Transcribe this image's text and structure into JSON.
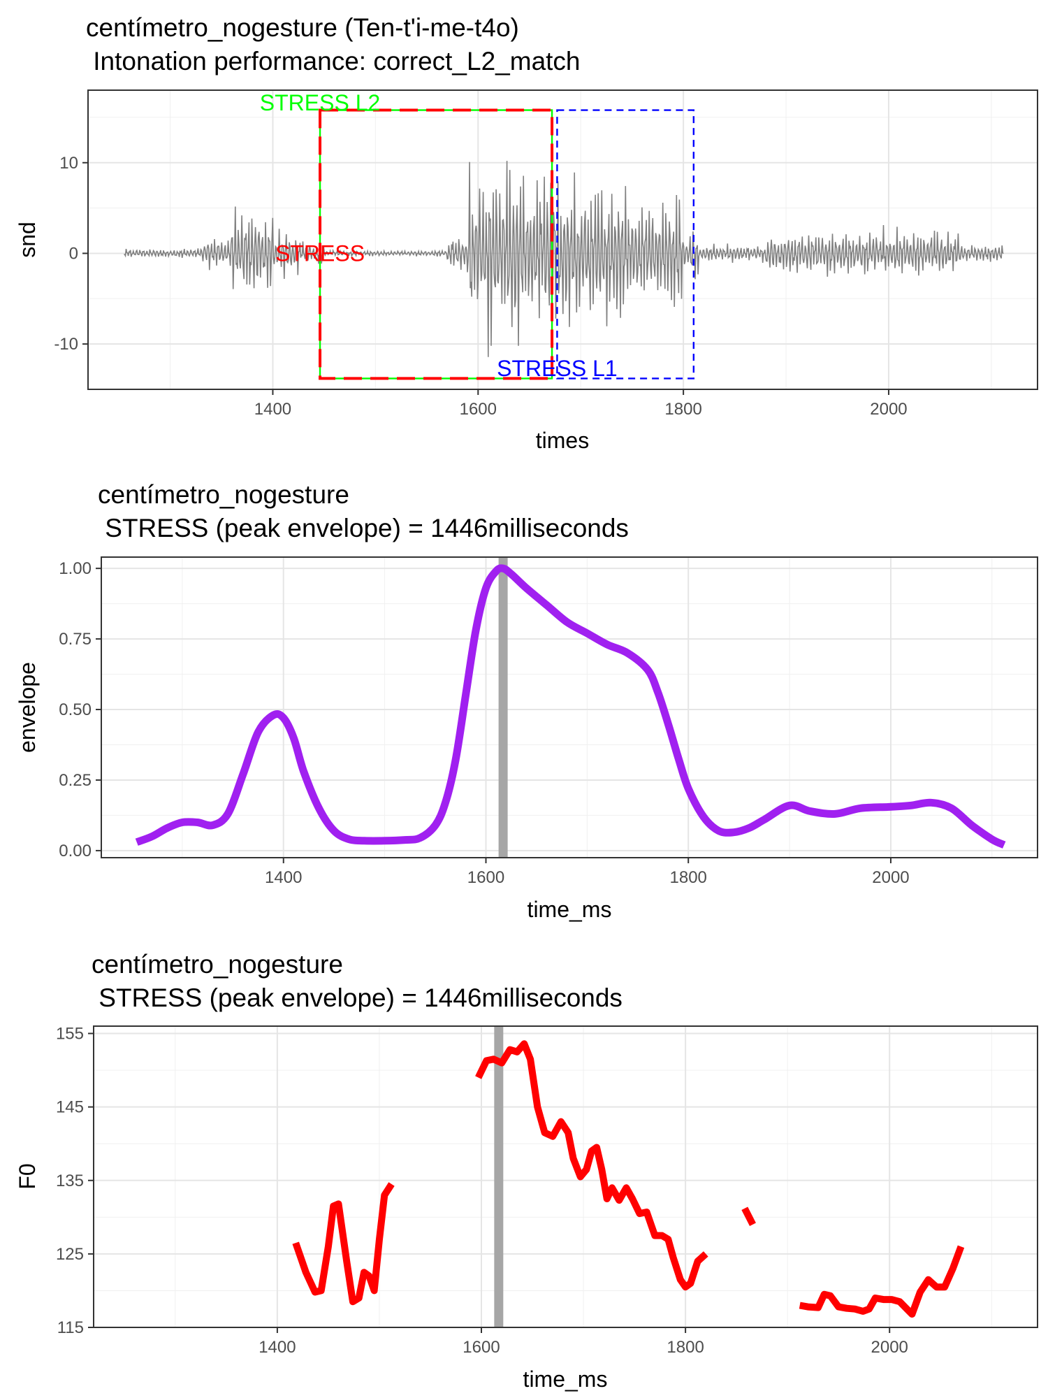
{
  "chart_data": [
    {
      "type": "line",
      "title": "centímetro_nogesture  (Ten-t'i-me-t4o)",
      "subtitle": " Intonation performance: correct_L2_match",
      "xlabel": "times",
      "ylabel": "snd",
      "xlim": [
        1220,
        2145
      ],
      "ylim": [
        -15,
        18
      ],
      "xticks": [
        1400,
        1600,
        1800,
        2000
      ],
      "yticks": [
        -10,
        0,
        10
      ],
      "ytick_labels": [
        "-10",
        "0",
        "10"
      ],
      "grid": true,
      "line_color": "#808080",
      "waveform_segments": [
        {
          "start": 1255,
          "end": 1330,
          "amp": 0.6
        },
        {
          "start": 1330,
          "end": 1360,
          "amp": 2.2
        },
        {
          "start": 1360,
          "end": 1378,
          "amp": 6.5
        },
        {
          "start": 1378,
          "end": 1400,
          "amp": 6.0
        },
        {
          "start": 1400,
          "end": 1425,
          "amp": 3.0
        },
        {
          "start": 1425,
          "end": 1450,
          "amp": 1.5
        },
        {
          "start": 1450,
          "end": 1570,
          "amp": 0.4
        },
        {
          "start": 1570,
          "end": 1590,
          "amp": 2.5
        },
        {
          "start": 1590,
          "end": 1640,
          "amp": 12.5
        },
        {
          "start": 1640,
          "end": 1672,
          "amp": 10.5
        },
        {
          "start": 1672,
          "end": 1740,
          "amp": 9.5
        },
        {
          "start": 1740,
          "end": 1800,
          "amp": 8.0
        },
        {
          "start": 1800,
          "end": 1815,
          "amp": 3.5
        },
        {
          "start": 1815,
          "end": 1880,
          "amp": 1.2
        },
        {
          "start": 1880,
          "end": 1900,
          "amp": 2.5
        },
        {
          "start": 1900,
          "end": 2070,
          "amp": 3.2
        },
        {
          "start": 2070,
          "end": 2112,
          "amp": 1.2
        }
      ],
      "boxes": [
        {
          "label": "STRESS",
          "xmin": 1446,
          "xmax": 1672,
          "ymin": -13.8,
          "ymax": 15.8,
          "color": "#ff0000",
          "dash": "long",
          "label_x": 1446,
          "label_y": 0
        },
        {
          "label": "STRESS L2",
          "xmin": 1446,
          "xmax": 1672,
          "ymin": -13.8,
          "ymax": 15.8,
          "color": "#00ff00",
          "dash": "solid",
          "label_x": 1446,
          "label_y": 16.6
        },
        {
          "label": "STRESS L1",
          "xmin": 1677,
          "xmax": 1810,
          "ymin": -13.8,
          "ymax": 15.8,
          "color": "#0000ff",
          "dash": "short",
          "label_x": 1677,
          "label_y": -12.7
        }
      ]
    },
    {
      "type": "line",
      "title": "centímetro_nogesture",
      "subtitle": " STRESS (peak envelope) = 1446milliseconds",
      "xlabel": "time_ms",
      "ylabel": "envelope",
      "xlim": [
        1220,
        2145
      ],
      "ylim": [
        -0.025,
        1.04
      ],
      "xticks": [
        1400,
        1600,
        1800,
        2000
      ],
      "yticks": [
        0,
        0.25,
        0.5,
        0.75,
        1.0
      ],
      "ytick_labels": [
        "0.00",
        "0.25",
        "0.50",
        "0.75",
        "1.00"
      ],
      "grid": true,
      "line_color": "#a020f0",
      "vline": 1617,
      "x": [
        1255,
        1270,
        1285,
        1300,
        1315,
        1330,
        1345,
        1360,
        1375,
        1390,
        1400,
        1410,
        1420,
        1435,
        1450,
        1465,
        1480,
        1500,
        1520,
        1535,
        1550,
        1560,
        1570,
        1580,
        1590,
        1600,
        1610,
        1617,
        1625,
        1640,
        1660,
        1680,
        1700,
        1720,
        1740,
        1760,
        1770,
        1780,
        1790,
        1800,
        1815,
        1830,
        1845,
        1860,
        1875,
        1900,
        1920,
        1945,
        1970,
        2000,
        2020,
        2040,
        2060,
        2080,
        2100,
        2112
      ],
      "y": [
        0.03,
        0.05,
        0.08,
        0.1,
        0.1,
        0.09,
        0.13,
        0.27,
        0.42,
        0.48,
        0.47,
        0.4,
        0.28,
        0.15,
        0.07,
        0.04,
        0.035,
        0.035,
        0.038,
        0.045,
        0.09,
        0.17,
        0.32,
        0.55,
        0.78,
        0.93,
        0.99,
        1.0,
        0.98,
        0.93,
        0.87,
        0.81,
        0.77,
        0.73,
        0.7,
        0.64,
        0.56,
        0.45,
        0.33,
        0.22,
        0.12,
        0.07,
        0.065,
        0.08,
        0.11,
        0.16,
        0.14,
        0.13,
        0.15,
        0.155,
        0.16,
        0.17,
        0.15,
        0.09,
        0.04,
        0.02
      ]
    },
    {
      "type": "line",
      "title": "centímetro_nogesture",
      "subtitle": " STRESS (peak envelope) = 1446milliseconds",
      "xlabel": "time_ms",
      "ylabel": "F0",
      "xlim": [
        1220,
        2145
      ],
      "ylim": [
        115,
        156
      ],
      "xticks": [
        1400,
        1600,
        1800,
        2000
      ],
      "yticks": [
        115,
        125,
        135,
        145,
        155
      ],
      "ytick_labels": [
        "115",
        "125",
        "135",
        "145",
        "155"
      ],
      "grid": true,
      "line_color": "#ff0000",
      "vline": 1617,
      "segments": [
        {
          "x": [
            1418,
            1428,
            1437,
            1443,
            1450,
            1455,
            1460,
            1468,
            1474,
            1480,
            1485,
            1490,
            1495,
            1500,
            1505,
            1512
          ],
          "y": [
            126.5,
            122.5,
            119.8,
            120.0,
            126.0,
            131.5,
            131.8,
            124.0,
            118.5,
            119.0,
            122.5,
            122.0,
            120.0,
            127.0,
            133.0,
            134.5
          ]
        },
        {
          "x": [
            1597,
            1605,
            1612,
            1620,
            1628,
            1635,
            1642,
            1648,
            1655,
            1662,
            1670,
            1678,
            1685,
            1690,
            1697,
            1703,
            1708,
            1713,
            1718,
            1723,
            1728,
            1735,
            1742,
            1748,
            1755,
            1762,
            1770,
            1777,
            1783,
            1788,
            1795,
            1800,
            1805,
            1812,
            1820
          ],
          "y": [
            149.0,
            151.3,
            151.5,
            151.0,
            152.8,
            152.5,
            153.6,
            151.5,
            145.0,
            141.5,
            141.0,
            143.0,
            141.5,
            138.0,
            135.5,
            136.5,
            139.0,
            139.5,
            136.5,
            132.5,
            134.0,
            132.3,
            134.0,
            132.5,
            130.5,
            130.7,
            127.5,
            127.5,
            127.0,
            124.5,
            121.5,
            120.5,
            121.0,
            124.0,
            125.0
          ]
        },
        {
          "x": [
            1858,
            1866
          ],
          "y": [
            131.2,
            129.0
          ]
        },
        {
          "x": [
            1912,
            1920,
            1930,
            1936,
            1942,
            1950,
            1958,
            1966,
            1974,
            1980,
            1986,
            1994,
            2002,
            2010,
            2017,
            2022,
            2030,
            2038,
            2046,
            2054,
            2062,
            2070
          ],
          "y": [
            118.0,
            117.8,
            117.7,
            119.5,
            119.3,
            117.8,
            117.6,
            117.5,
            117.2,
            117.5,
            119.0,
            118.8,
            118.8,
            118.5,
            117.5,
            116.8,
            119.8,
            121.5,
            120.5,
            120.5,
            123.0,
            126.0
          ]
        }
      ]
    }
  ]
}
